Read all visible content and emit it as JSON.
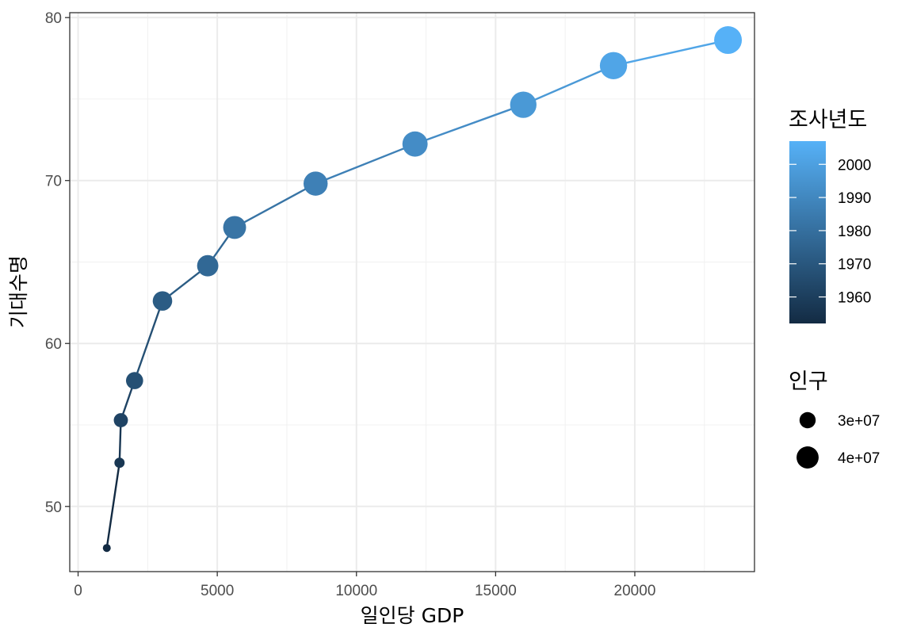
{
  "chart_data": {
    "type": "scatter",
    "xlabel": "일인당 GDP",
    "ylabel": "기대수명",
    "xlim": [
      -300,
      24300
    ],
    "ylim": [
      46,
      80.3
    ],
    "x_ticks": [
      0,
      5000,
      10000,
      15000,
      20000
    ],
    "x_tick_labels": [
      "0",
      "5000",
      "10000",
      "15000",
      "20000"
    ],
    "y_ticks": [
      50,
      60,
      70,
      80
    ],
    "y_tick_labels": [
      "50",
      "60",
      "70",
      "80"
    ],
    "grid": true,
    "points_connected_by_line": true,
    "points": [
      {
        "gdp": 1031,
        "life_exp": 47.45,
        "year": 1952,
        "pop": 20947571
      },
      {
        "gdp": 1488,
        "life_exp": 52.68,
        "year": 1957,
        "pop": 22611552
      },
      {
        "gdp": 1536,
        "life_exp": 55.29,
        "year": 1962,
        "pop": 26420307
      },
      {
        "gdp": 2029,
        "life_exp": 57.72,
        "year": 1967,
        "pop": 30131000
      },
      {
        "gdp": 3031,
        "life_exp": 62.61,
        "year": 1972,
        "pop": 33505000
      },
      {
        "gdp": 4657,
        "life_exp": 64.77,
        "year": 1977,
        "pop": 36436000
      },
      {
        "gdp": 5623,
        "life_exp": 67.12,
        "year": 1982,
        "pop": 39326000
      },
      {
        "gdp": 8533,
        "life_exp": 69.81,
        "year": 1987,
        "pop": 41622000
      },
      {
        "gdp": 12104,
        "life_exp": 72.24,
        "year": 1992,
        "pop": 43805450
      },
      {
        "gdp": 15994,
        "life_exp": 74.65,
        "year": 1997,
        "pop": 46173816
      },
      {
        "gdp": 19234,
        "life_exp": 77.05,
        "year": 2002,
        "pop": 47969150
      },
      {
        "gdp": 23348,
        "life_exp": 78.62,
        "year": 2007,
        "pop": 49044790
      }
    ],
    "color_legend": {
      "title": "조사년도",
      "range": [
        1952,
        2007
      ],
      "breaks": [
        1960,
        1970,
        1980,
        1990,
        2000
      ],
      "labels": [
        "1960",
        "1970",
        "1980",
        "1990",
        "2000"
      ],
      "low_color": "#132B43",
      "high_color": "#56B1F7"
    },
    "size_legend": {
      "title": "인구",
      "breaks": [
        30000000,
        40000000
      ],
      "labels": [
        "3e+07",
        "4e+07"
      ],
      "range": [
        20947571,
        49044790
      ]
    }
  }
}
